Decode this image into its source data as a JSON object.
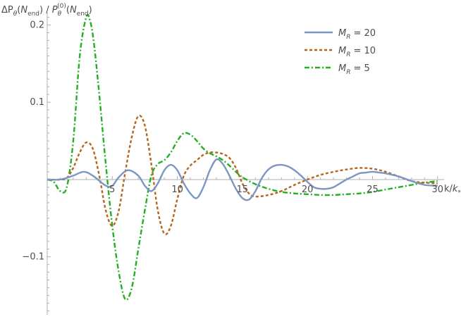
{
  "chart_data": {
    "type": "line",
    "title": "",
    "ylabel": "ΔP_θ(N_end) / P_θ^(0)(N_end)",
    "xlabel": "k/k_*",
    "xlim": [
      0,
      30.5
    ],
    "ylim": [
      -0.175,
      0.225
    ],
    "x_ticks": [
      5,
      10,
      15,
      20,
      25,
      30
    ],
    "y_ticks": [
      -0.1,
      0.1,
      0.2
    ],
    "x_tick_labels": [
      "5",
      "10",
      "15",
      "20",
      "25",
      "30"
    ],
    "y_tick_labels": [
      "−0.1",
      "0.1",
      "0.2"
    ],
    "grid": false,
    "legend_position": "top-right",
    "legend": {
      "entries": [
        {
          "symbol": "M",
          "sub": "R",
          "value": "= 20"
        },
        {
          "symbol": "M",
          "sub": "R",
          "value": "= 10"
        },
        {
          "symbol": "M",
          "sub": "R",
          "value": "= 5"
        }
      ]
    },
    "series": [
      {
        "name": "M_R = 20",
        "color": "#7b96c2",
        "dash": "solid",
        "x": [
          0,
          1,
          2,
          2.8,
          3.5,
          4.5,
          5.0,
          5.5,
          6.2,
          7.0,
          7.5,
          8.0,
          8.5,
          9.0,
          9.5,
          10.0,
          10.5,
          11.0,
          11.5,
          12.0,
          12.5,
          13.0,
          13.5,
          14.0,
          14.5,
          15.0,
          15.5,
          16.0,
          16.5,
          17.0,
          17.5,
          18.0,
          18.5,
          19.0,
          19.5,
          20.0,
          20.5,
          21.0,
          21.5,
          22.0,
          22.5,
          23.0,
          23.5,
          24.0,
          24.5,
          25.0,
          25.5,
          26.0,
          27.0,
          28.0,
          29.0,
          30.0
        ],
        "y": [
          0,
          0,
          0.005,
          0.01,
          0.005,
          -0.008,
          -0.008,
          0.003,
          0.012,
          0.005,
          -0.008,
          -0.015,
          -0.005,
          0.012,
          0.019,
          0.012,
          -0.005,
          -0.018,
          -0.024,
          -0.01,
          0.012,
          0.026,
          0.02,
          0.005,
          -0.012,
          -0.024,
          -0.026,
          -0.015,
          0.002,
          0.013,
          0.018,
          0.019,
          0.017,
          0.012,
          0.005,
          -0.003,
          -0.01,
          -0.012,
          -0.012,
          -0.01,
          -0.005,
          0.0,
          0.004,
          0.008,
          0.009,
          0.01,
          0.009,
          0.008,
          0.004,
          -0.002,
          -0.007,
          -0.008
        ]
      },
      {
        "name": "M_R = 10",
        "color": "#b5651d",
        "dash": "dashed",
        "x": [
          0,
          1,
          1.5,
          2.0,
          2.5,
          3.0,
          3.5,
          4.0,
          4.5,
          5.0,
          5.5,
          6.0,
          6.5,
          7.0,
          7.5,
          8.0,
          8.5,
          9.0,
          9.5,
          10.0,
          10.5,
          11.0,
          11.5,
          12.0,
          12.5,
          13.0,
          13.5,
          14.0,
          14.5,
          15.0,
          15.5,
          16.0,
          17.0,
          18.0,
          19.0,
          20.0,
          21.0,
          22.0,
          23.0,
          24.0,
          25.0,
          26.0,
          27.0,
          28.0,
          29.0,
          30.0
        ],
        "y": [
          0,
          0,
          0.002,
          0.015,
          0.035,
          0.048,
          0.04,
          0.005,
          -0.04,
          -0.06,
          -0.04,
          0.01,
          0.055,
          0.082,
          0.07,
          0.02,
          -0.04,
          -0.07,
          -0.06,
          -0.025,
          0.005,
          0.018,
          0.025,
          0.032,
          0.035,
          0.035,
          0.033,
          0.028,
          0.015,
          -0.005,
          -0.018,
          -0.022,
          -0.02,
          -0.015,
          -0.007,
          0.0,
          0.006,
          0.01,
          0.013,
          0.015,
          0.014,
          0.01,
          0.004,
          -0.002,
          -0.004,
          -0.005
        ]
      },
      {
        "name": "M_R = 5",
        "color": "#22b022",
        "dash": "dashdot",
        "x": [
          0,
          0.5,
          1.0,
          1.5,
          2.0,
          2.5,
          3.0,
          3.3,
          3.6,
          4.0,
          4.5,
          5.0,
          5.5,
          6.0,
          6.5,
          7.0,
          7.5,
          8.0,
          8.5,
          9.0,
          9.5,
          10.0,
          10.5,
          11.0,
          11.5,
          12.0,
          12.5,
          13.0,
          13.5,
          14.0,
          14.5,
          15.0,
          16.0,
          17.0,
          18.0,
          19.0,
          20.0,
          21.0,
          22.0,
          23.0,
          24.0,
          25.0,
          26.0,
          27.0,
          28.0,
          29.0,
          30.0
        ],
        "y": [
          0,
          -0.003,
          -0.015,
          -0.01,
          0.05,
          0.16,
          0.21,
          0.205,
          0.175,
          0.11,
          0.02,
          -0.06,
          -0.12,
          -0.155,
          -0.14,
          -0.09,
          -0.04,
          0.005,
          0.02,
          0.025,
          0.035,
          0.05,
          0.06,
          0.058,
          0.05,
          0.04,
          0.034,
          0.03,
          0.025,
          0.018,
          0.01,
          0.003,
          -0.006,
          -0.012,
          -0.016,
          -0.018,
          -0.019,
          -0.02,
          -0.02,
          -0.019,
          -0.018,
          -0.016,
          -0.013,
          -0.01,
          -0.007,
          -0.004,
          -0.002
        ]
      }
    ]
  }
}
